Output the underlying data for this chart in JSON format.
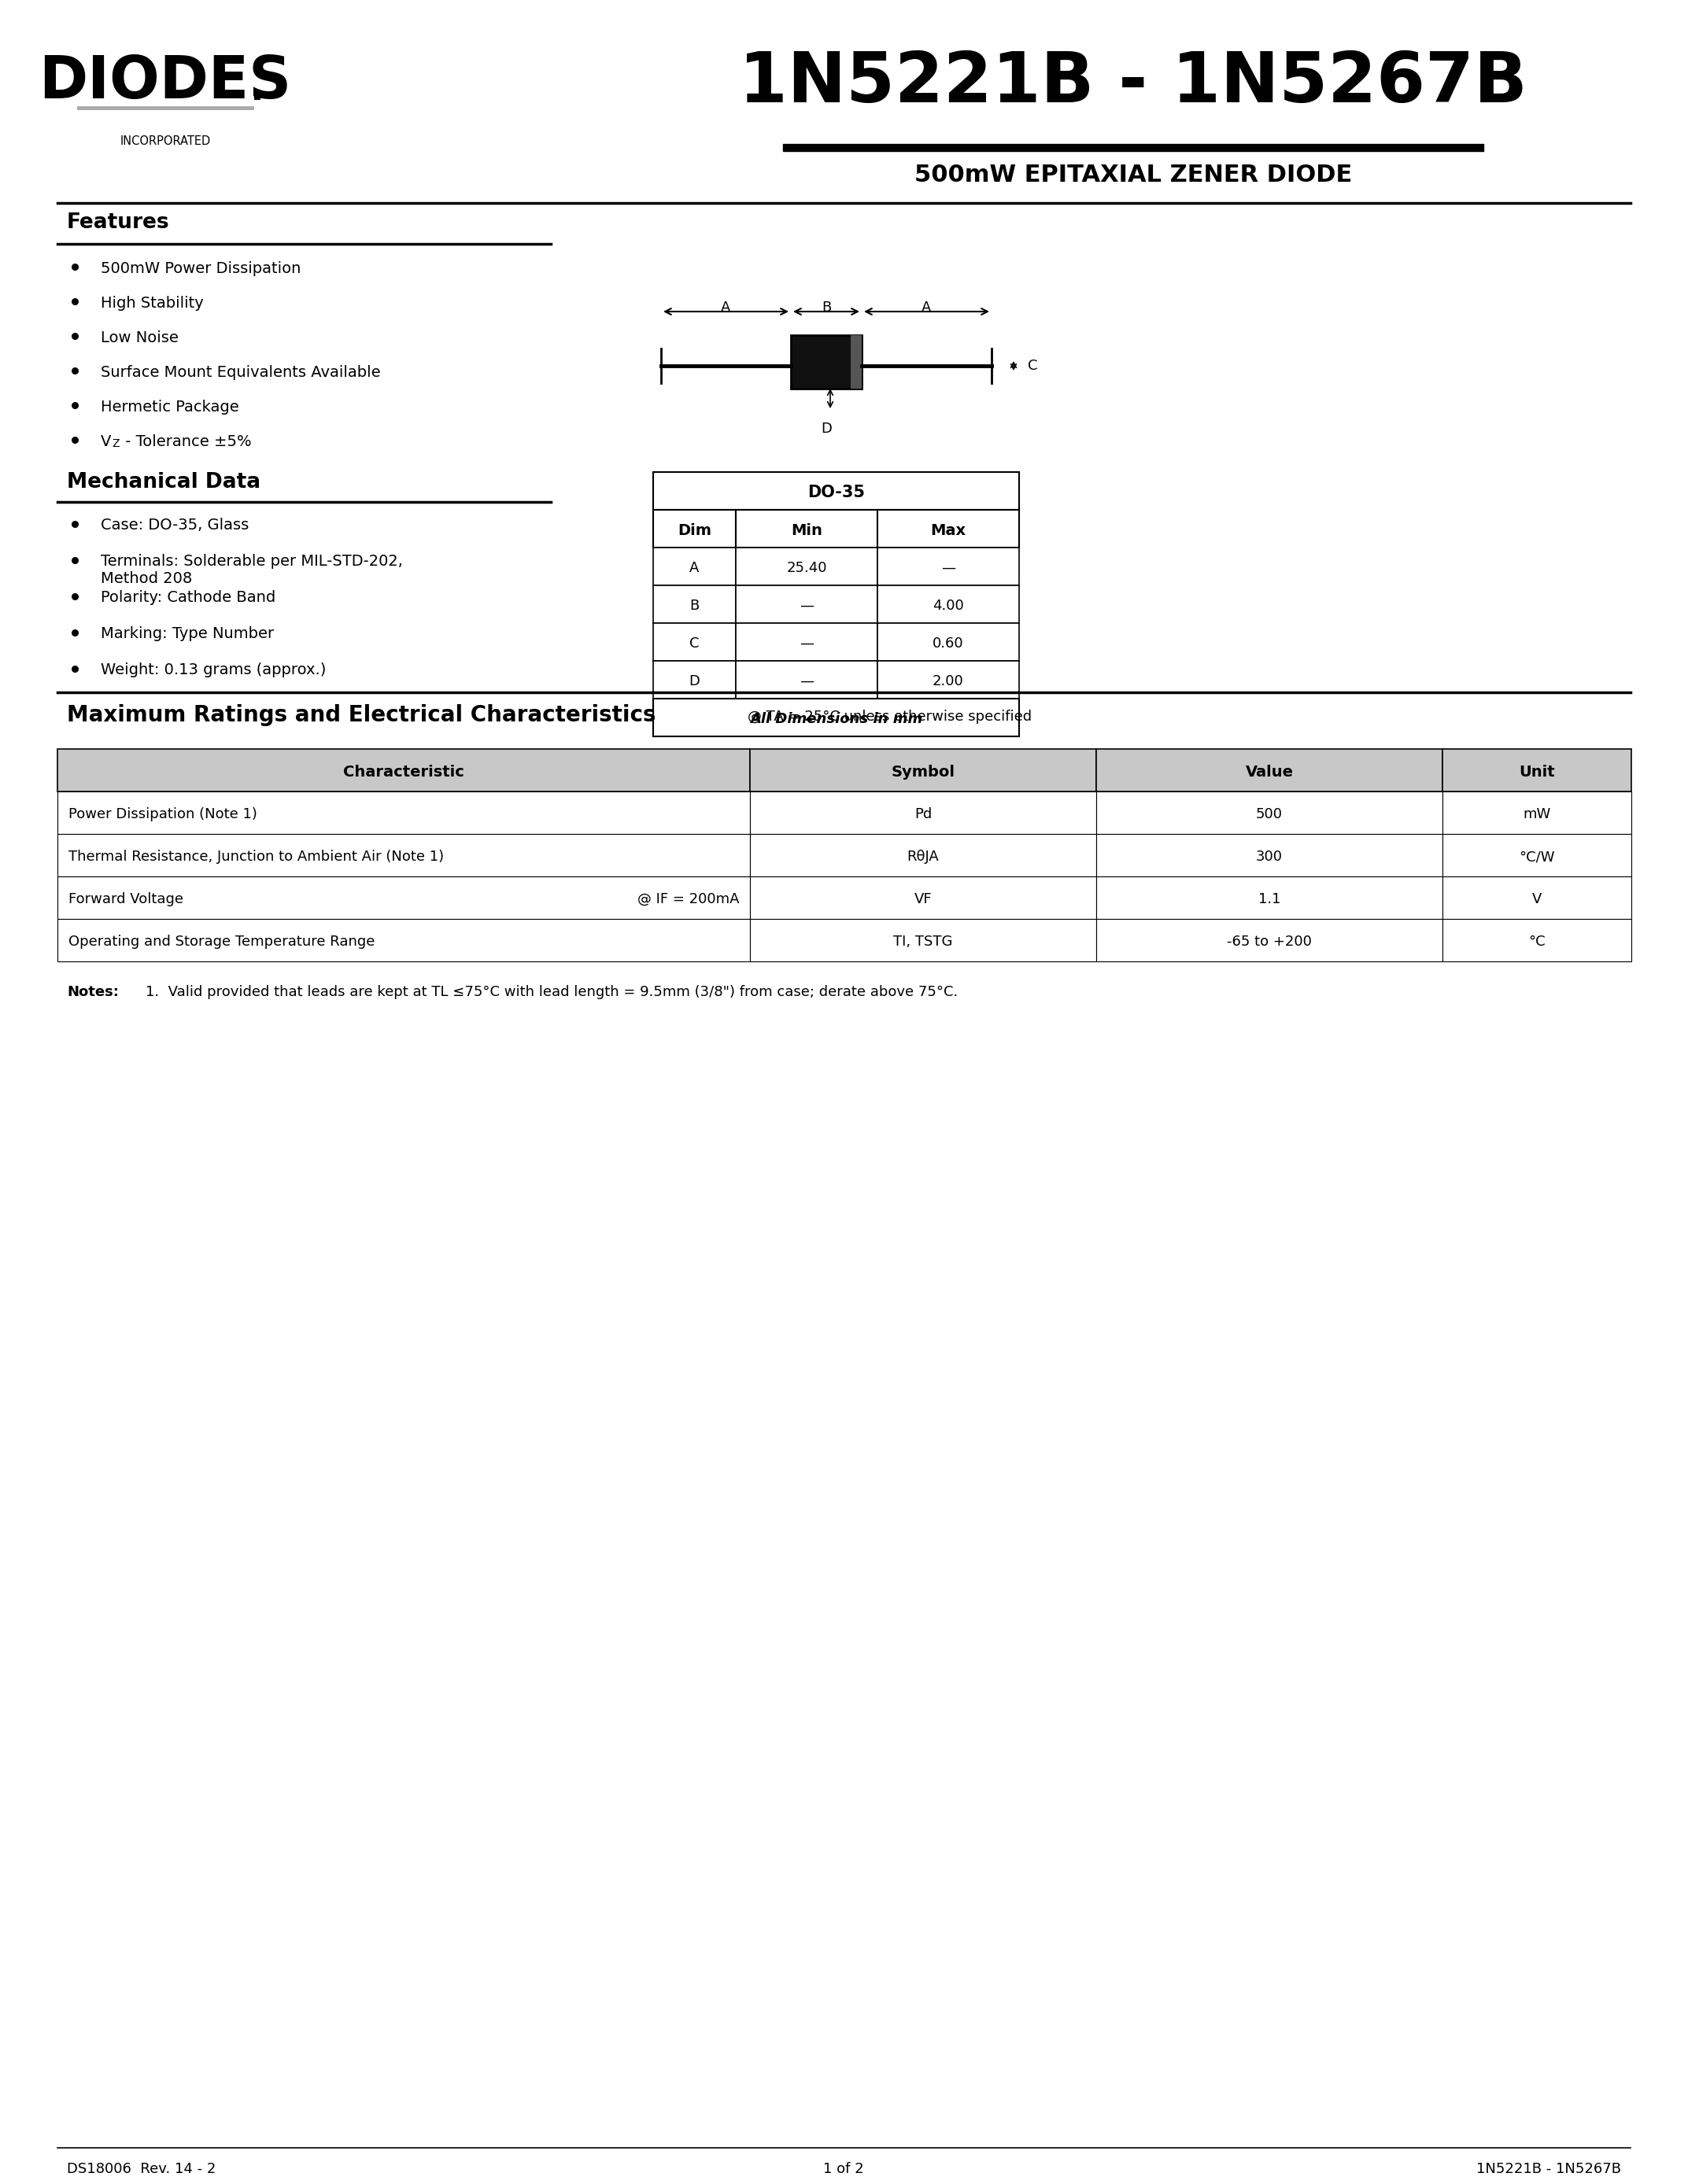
{
  "title": "1N5221B - 1N5267B",
  "subtitle": "500mW EPITAXIAL ZENER DIODE",
  "logo_text": "DIODES",
  "logo_sub": "INCORPORATED",
  "features_title": "Features",
  "features": [
    "500mW Power Dissipation",
    "High Stability",
    "Low Noise",
    "Surface Mount Equivalents Available",
    "Hermetic Package",
    "VZ - Tolerance ±5%"
  ],
  "mech_title": "Mechanical Data",
  "mech_items": [
    "Case: DO-35, Glass",
    "Terminals: Solderable per MIL-STD-202,\nMethod 208",
    "Polarity: Cathode Band",
    "Marking: Type Number",
    "Weight: 0.13 grams (approx.)"
  ],
  "package_table_title": "DO-35",
  "package_headers": [
    "Dim",
    "Min",
    "Max"
  ],
  "package_rows": [
    [
      "A",
      "25.40",
      "—"
    ],
    [
      "B",
      "—",
      "4.00"
    ],
    [
      "C",
      "—",
      "0.60"
    ],
    [
      "D",
      "—",
      "2.00"
    ]
  ],
  "package_footer": "All Dimensions in mm",
  "ratings_title": "Maximum Ratings and Electrical Characteristics",
  "ratings_note_inline": "@ TA = 25°C unless otherwise specified",
  "ratings_headers": [
    "Characteristic",
    "Symbol",
    "Value",
    "Unit"
  ],
  "ratings_rows": [
    [
      "Power Dissipation (Note 1)",
      "Pd",
      "500",
      "mW"
    ],
    [
      "Thermal Resistance, Junction to Ambient Air (Note 1)",
      "RθJA",
      "300",
      "°C/W"
    ],
    [
      "Forward Voltage@@IF = 200mA",
      "VF",
      "1.1",
      "V"
    ],
    [
      "Operating and Storage Temperature Range",
      "TI, TSTG",
      "-65 to +200",
      "°C"
    ]
  ],
  "notes_title": "Notes:",
  "notes": "1.  Valid provided that leads are kept at TL ≤75°C with lead length = 9.5mm (3/8\") from case; derate above 75°C.",
  "footer_left": "DS18006  Rev. 14 - 2",
  "footer_center": "1 of 2",
  "footer_right": "1N5221B - 1N5267B",
  "bg_color": "#ffffff",
  "text_color": "#000000",
  "header_bg": "#d9d9d9"
}
